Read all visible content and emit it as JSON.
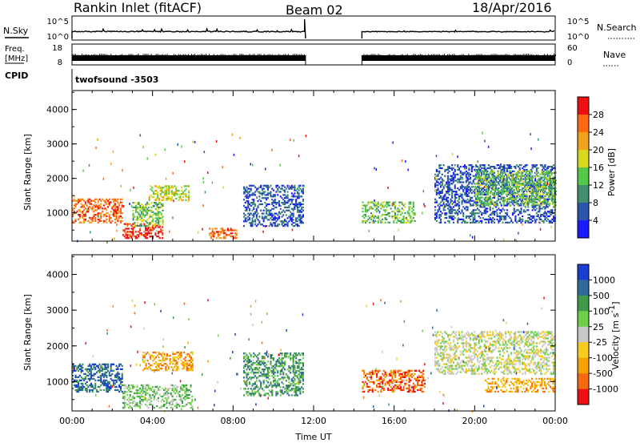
{
  "header": {
    "station": "Rankin Inlet (fitACF)",
    "beam": "Beam 02",
    "date": "18/Apr/2016"
  },
  "strips": {
    "nsky_label": "N.Sky",
    "nsky_ticks": [
      "10^5",
      "10^0"
    ],
    "nsearch_label": "N.Search",
    "nsearch_ticks": [
      "10^5",
      "10^0"
    ],
    "freq_label": "Freq.",
    "freq_unit": "[MHz]",
    "freq_ticks": [
      "18",
      "8"
    ],
    "nave_label": "Nave",
    "nave_ticks": [
      "60",
      "0"
    ],
    "cpid_label": "CPID",
    "cpid_value": "twofsound -3503",
    "data_gap_hours": [
      11.6,
      14.4
    ]
  },
  "chart_data": [
    {
      "type": "heatmap",
      "panel": "power",
      "ylabel": "Slant Range [km]",
      "xlabel": "Time UT",
      "x_ticks": [
        "00:00",
        "04:00",
        "08:00",
        "12:00",
        "16:00",
        "20:00",
        "00:00"
      ],
      "x_range_hours": [
        0,
        24
      ],
      "y_ticks": [
        "1000",
        "2000",
        "3000",
        "4000"
      ],
      "ylim_km": [
        180,
        4550
      ],
      "colorbar_label": "Power [dB]",
      "colorbar_ticks": [
        "4",
        "8",
        "12",
        "16",
        "20",
        "24",
        "28"
      ],
      "colors": [
        "#1a1aff",
        "#2a55aa",
        "#3f8f6f",
        "#55c84a",
        "#d8d81c",
        "#f2a21a",
        "#ff6a10",
        "#ee1010"
      ],
      "regions": [
        {
          "t": [
            0.0,
            2.5
          ],
          "r": [
            700,
            1400
          ],
          "level": 6
        },
        {
          "t": [
            2.5,
            4.5
          ],
          "r": [
            250,
            700
          ],
          "level": 7
        },
        {
          "t": [
            3.0,
            4.5
          ],
          "r": [
            600,
            1300
          ],
          "level": 3
        },
        {
          "t": [
            3.8,
            5.8
          ],
          "r": [
            1350,
            1800
          ],
          "level": 4
        },
        {
          "t": [
            6.8,
            8.2
          ],
          "r": [
            250,
            550
          ],
          "level": 6
        },
        {
          "t": [
            8.5,
            11.5
          ],
          "r": [
            600,
            1800
          ],
          "level": 1
        },
        {
          "t": [
            14.4,
            17.0
          ],
          "r": [
            700,
            1300
          ],
          "level": 3
        },
        {
          "t": [
            18.0,
            24.0
          ],
          "r": [
            700,
            2400
          ],
          "level": 1
        },
        {
          "t": [
            20.0,
            24.0
          ],
          "r": [
            1200,
            2200
          ],
          "level": 3
        }
      ]
    },
    {
      "type": "heatmap",
      "panel": "velocity",
      "ylabel": "Slant Range [km]",
      "xlabel": "Time UT",
      "x_ticks": [
        "00:00",
        "04:00",
        "08:00",
        "12:00",
        "16:00",
        "20:00",
        "00:00"
      ],
      "x_range_hours": [
        0,
        24
      ],
      "y_ticks": [
        "1000",
        "2000",
        "3000",
        "4000"
      ],
      "ylim_km": [
        180,
        4550
      ],
      "colorbar_label": "Velocity [m s",
      "colorbar_unit_sup": "-1",
      "colorbar_unit_close": "]",
      "colorbar_ticks": [
        "1000",
        "500",
        "100",
        "25",
        "-25",
        "-100",
        "-500",
        "-1000"
      ],
      "colors": [
        "#1a3fd0",
        "#2f6a9a",
        "#3f9a4a",
        "#6ed04a",
        "#c8c8c8",
        "#f7cc20",
        "#f5a200",
        "#f56a10",
        "#ee1010"
      ],
      "regions": [
        {
          "t": [
            0.0,
            2.5
          ],
          "r": [
            700,
            1500
          ],
          "level": 1
        },
        {
          "t": [
            2.5,
            6.0
          ],
          "r": [
            250,
            900
          ],
          "level": 3
        },
        {
          "t": [
            3.5,
            6.0
          ],
          "r": [
            1300,
            1800
          ],
          "level": 6
        },
        {
          "t": [
            8.5,
            11.5
          ],
          "r": [
            600,
            1800
          ],
          "level": 2
        },
        {
          "t": [
            14.4,
            17.5
          ],
          "r": [
            700,
            1300
          ],
          "level": 7
        },
        {
          "t": [
            18.0,
            24.0
          ],
          "r": [
            1200,
            2400
          ],
          "level": 4
        },
        {
          "t": [
            20.5,
            24.0
          ],
          "r": [
            700,
            1100
          ],
          "level": 6
        }
      ]
    }
  ]
}
